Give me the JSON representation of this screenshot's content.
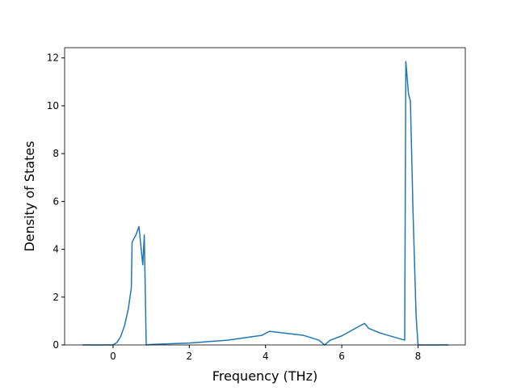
{
  "chart_data": {
    "type": "line",
    "xlabel": "Frequency (THz)",
    "ylabel": "Density of States",
    "x": [
      -0.8,
      0,
      0.1,
      0.2,
      0.3,
      0.4,
      0.48,
      0.5,
      0.6,
      0.68,
      0.72,
      0.78,
      0.82,
      0.87,
      1.0,
      2.0,
      3.0,
      3.9,
      4.1,
      5.0,
      5.4,
      5.55,
      5.7,
      6.0,
      6.5,
      6.6,
      6.7,
      7.0,
      7.65,
      7.68,
      7.75,
      7.8,
      7.87,
      7.95,
      8.0,
      8.8
    ],
    "series": [
      {
        "color": "#1f77b4",
        "values": [
          0,
          0,
          0.1,
          0.35,
          0.8,
          1.5,
          2.4,
          4.3,
          4.6,
          4.95,
          4.3,
          3.35,
          4.6,
          0,
          0.02,
          0.08,
          0.2,
          0.4,
          0.57,
          0.4,
          0.2,
          0,
          0.2,
          0.38,
          0.82,
          0.9,
          0.7,
          0.5,
          0.2,
          11.85,
          10.5,
          10.2,
          5.5,
          1.2,
          0,
          0
        ]
      }
    ],
    "xlim": [
      -1.27,
      9.24
    ],
    "ylim": [
      0,
      12.43
    ],
    "xticks": [
      0,
      2,
      4,
      6,
      8
    ],
    "yticks": [
      0,
      2,
      4,
      6,
      8,
      10,
      12
    ],
    "grid": false
  }
}
